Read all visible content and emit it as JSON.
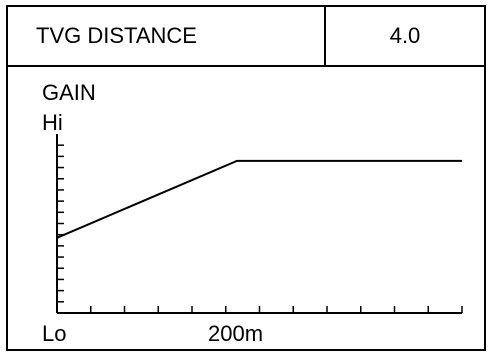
{
  "header": {
    "label": "TVG DISTANCE",
    "value": "4.0"
  },
  "graph": {
    "title": "GAIN",
    "y_top_label": "Hi",
    "x_left_label": "Lo",
    "x_mark_label": "200m"
  },
  "chart_data": {
    "type": "line",
    "series": [
      {
        "points": [
          [
            0,
            0.42
          ],
          [
            200,
            0.85
          ],
          [
            450,
            0.85
          ]
        ]
      }
    ],
    "x_tick_count": 12,
    "y_tick_count": 15
  },
  "colors": {
    "line": "#000000",
    "background": "#ffffff"
  }
}
